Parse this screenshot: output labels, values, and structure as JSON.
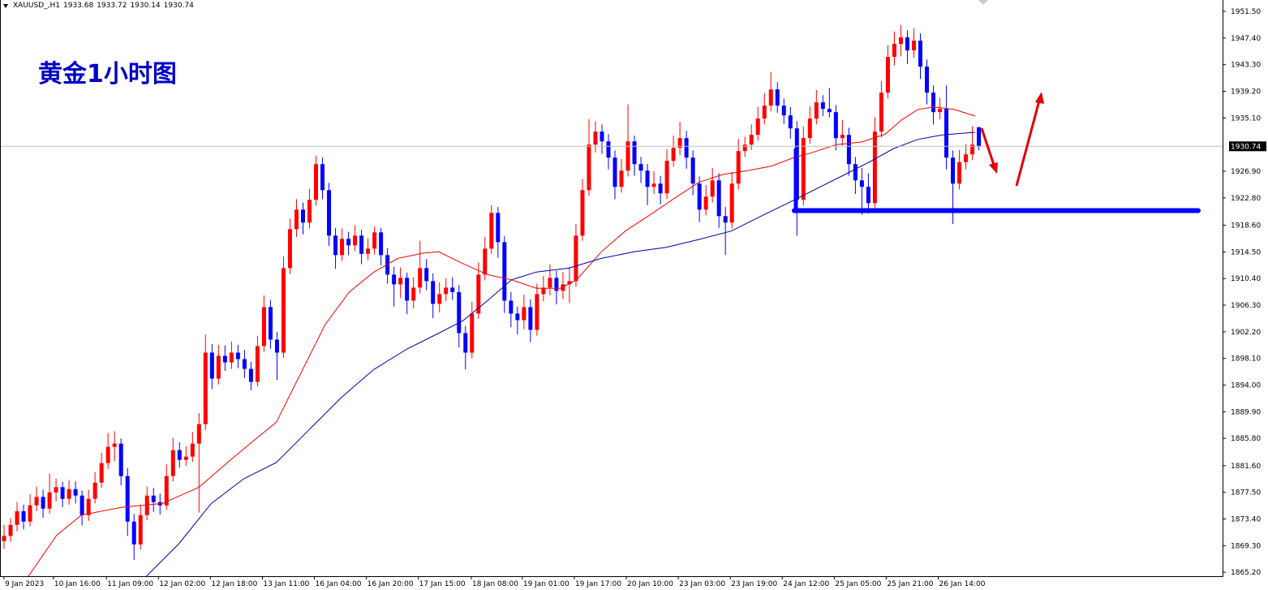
{
  "chart_data": {
    "type": "candlestick",
    "symbol": "XAUUSD_,H1",
    "header_values": [
      1933.68,
      1933.72,
      1930.14,
      1930.74
    ],
    "title": "黄金1小时图",
    "up_color": "#ff0000",
    "down_color": "#0000ff",
    "grid": false,
    "candles": [
      [
        1870,
        1872.5,
        1868.8,
        1870.8
      ],
      [
        1870.8,
        1873.5,
        1869.9,
        1872.5
      ],
      [
        1872.5,
        1876,
        1871.5,
        1874.6
      ],
      [
        1874.6,
        1875.6,
        1871.8,
        1873
      ],
      [
        1873,
        1877.2,
        1872.3,
        1875.5
      ],
      [
        1875.5,
        1878.4,
        1874.6,
        1876.8
      ],
      [
        1876.8,
        1877.9,
        1873.6,
        1875
      ],
      [
        1875,
        1880.4,
        1874.2,
        1877.5
      ],
      [
        1877.5,
        1879.6,
        1876.1,
        1878.3
      ],
      [
        1878.3,
        1879.1,
        1875.2,
        1876.5
      ],
      [
        1876.5,
        1879.4,
        1875.6,
        1878
      ],
      [
        1878,
        1879.2,
        1875.8,
        1877
      ],
      [
        1877,
        1877.8,
        1872.4,
        1874
      ],
      [
        1874,
        1877.9,
        1873.1,
        1876.5
      ],
      [
        1876.5,
        1880.6,
        1875.8,
        1879
      ],
      [
        1879,
        1883.6,
        1878.2,
        1882
      ],
      [
        1882,
        1886.6,
        1881.1,
        1884.5
      ],
      [
        1884.5,
        1886.9,
        1882.3,
        1885
      ],
      [
        1885,
        1885.8,
        1878.6,
        1880
      ],
      [
        1880,
        1881.2,
        1870.8,
        1873
      ],
      [
        1873,
        1874.2,
        1867.1,
        1869.5
      ],
      [
        1869.5,
        1875.6,
        1868.7,
        1874
      ],
      [
        1874,
        1878.4,
        1873.2,
        1877
      ],
      [
        1877,
        1878.2,
        1874.5,
        1876
      ],
      [
        1876,
        1877.3,
        1874.1,
        1875.5
      ],
      [
        1875.5,
        1881.8,
        1874.8,
        1880
      ],
      [
        1880,
        1885.9,
        1879.2,
        1884
      ],
      [
        1884,
        1885.2,
        1881.3,
        1882.5
      ],
      [
        1882.5,
        1884.6,
        1881.6,
        1883
      ],
      [
        1883,
        1886.8,
        1882.2,
        1885
      ],
      [
        1885,
        1889.7,
        1874.4,
        1888
      ],
      [
        1888,
        1901.8,
        1887.1,
        1899
      ],
      [
        1899,
        1900.3,
        1893.4,
        1895
      ],
      [
        1895,
        1900.2,
        1894.1,
        1898.5
      ],
      [
        1898.5,
        1900.1,
        1896.2,
        1897.5
      ],
      [
        1897.5,
        1900.7,
        1896.5,
        1899
      ],
      [
        1899,
        1900.2,
        1896.6,
        1898
      ],
      [
        1898,
        1899.4,
        1895.1,
        1896.5
      ],
      [
        1896.5,
        1897.6,
        1893.2,
        1894.5
      ],
      [
        1894.5,
        1901.6,
        1893.8,
        1900
      ],
      [
        1900,
        1907.8,
        1899.1,
        1906
      ],
      [
        1906,
        1907.1,
        1899.6,
        1901
      ],
      [
        1901,
        1902.2,
        1894.8,
        1899
      ],
      [
        1899,
        1913.8,
        1898.2,
        1912
      ],
      [
        1912,
        1919.6,
        1911.1,
        1918
      ],
      [
        1918,
        1922.6,
        1916.8,
        1921
      ],
      [
        1921,
        1922.1,
        1917.2,
        1919
      ],
      [
        1919,
        1924.2,
        1918.1,
        1922.5
      ],
      [
        1922.5,
        1929.3,
        1921.6,
        1928
      ],
      [
        1928,
        1929,
        1922.6,
        1924
      ],
      [
        1924,
        1925.1,
        1915.4,
        1917
      ],
      [
        1917,
        1918.2,
        1911.9,
        1914
      ],
      [
        1914,
        1918.1,
        1913.1,
        1916.5
      ],
      [
        1916.5,
        1917.6,
        1914,
        1915.5
      ],
      [
        1915.5,
        1918.6,
        1914.6,
        1917
      ],
      [
        1917,
        1917.9,
        1912.6,
        1914.2
      ],
      [
        1914.2,
        1916.6,
        1913.2,
        1915
      ],
      [
        1915,
        1918.4,
        1914.1,
        1917.5
      ],
      [
        1917.5,
        1918.2,
        1912.4,
        1914
      ],
      [
        1914,
        1915.1,
        1909.6,
        1911
      ],
      [
        1911,
        1912.2,
        1906.1,
        1909.5
      ],
      [
        1909.5,
        1912.1,
        1907.4,
        1910.5
      ],
      [
        1910.5,
        1911.3,
        1904.9,
        1907
      ],
      [
        1907,
        1910.6,
        1905.8,
        1909
      ],
      [
        1909,
        1916.2,
        1908.1,
        1912
      ],
      [
        1912,
        1913.4,
        1908.6,
        1910
      ],
      [
        1910,
        1911.2,
        1904.3,
        1906.5
      ],
      [
        1906.5,
        1909.8,
        1905.2,
        1908
      ],
      [
        1908,
        1910.4,
        1906.9,
        1909
      ],
      [
        1909,
        1910.6,
        1907.1,
        1908.3
      ],
      [
        1908.3,
        1909.4,
        1899.8,
        1902
      ],
      [
        1902,
        1903.1,
        1896.4,
        1899
      ],
      [
        1899,
        1906.8,
        1898.1,
        1905
      ],
      [
        1905,
        1912.9,
        1904.2,
        1911
      ],
      [
        1911,
        1916.8,
        1910.1,
        1915
      ],
      [
        1915,
        1921.7,
        1914.2,
        1920.5
      ],
      [
        1920.5,
        1921.4,
        1913.6,
        1916
      ],
      [
        1916,
        1916.9,
        1905.1,
        1907
      ],
      [
        1907,
        1908.3,
        1902.9,
        1905
      ],
      [
        1905,
        1906.1,
        1901.8,
        1904
      ],
      [
        1904,
        1907.9,
        1902.6,
        1906
      ],
      [
        1906,
        1907.2,
        1900.6,
        1902.5
      ],
      [
        1902.5,
        1909.6,
        1901.6,
        1908
      ],
      [
        1908,
        1910.8,
        1906.9,
        1909
      ],
      [
        1909,
        1912.6,
        1907.8,
        1910.5
      ],
      [
        1910.5,
        1911.6,
        1906.4,
        1908.5
      ],
      [
        1908.5,
        1911.4,
        1907.2,
        1909.5
      ],
      [
        1909.5,
        1912.2,
        1906.6,
        1910
      ],
      [
        1910,
        1918.8,
        1909.1,
        1917
      ],
      [
        1917,
        1925.7,
        1916.2,
        1924
      ],
      [
        1924,
        1934.9,
        1923.1,
        1931
      ],
      [
        1931,
        1934.6,
        1929.8,
        1933
      ],
      [
        1933,
        1934.1,
        1929.6,
        1931.5
      ],
      [
        1931.5,
        1932.6,
        1927.2,
        1929
      ],
      [
        1929,
        1930.1,
        1922.6,
        1924.5
      ],
      [
        1924.5,
        1928.8,
        1923.6,
        1927
      ],
      [
        1927,
        1937.2,
        1926.1,
        1931.5
      ],
      [
        1931.5,
        1932.4,
        1926.2,
        1928
      ],
      [
        1928,
        1929.1,
        1925.1,
        1927
      ],
      [
        1927,
        1928,
        1921.7,
        1924.5
      ],
      [
        1924.5,
        1926.9,
        1923.4,
        1925
      ],
      [
        1925,
        1926.2,
        1921.8,
        1923.5
      ],
      [
        1923.5,
        1930.3,
        1922.6,
        1928.5
      ],
      [
        1928.5,
        1932.4,
        1927.6,
        1930.5
      ],
      [
        1930.5,
        1934.5,
        1929.4,
        1932
      ],
      [
        1932,
        1933.1,
        1927.3,
        1929
      ],
      [
        1929,
        1930.1,
        1923.2,
        1925
      ],
      [
        1925,
        1926.1,
        1919.1,
        1921
      ],
      [
        1921,
        1924.8,
        1920.1,
        1923
      ],
      [
        1923,
        1927.4,
        1922.1,
        1925.5
      ],
      [
        1925.5,
        1926.6,
        1918.2,
        1920
      ],
      [
        1920,
        1921.4,
        1914,
        1919
      ],
      [
        1919,
        1926.8,
        1918.1,
        1925
      ],
      [
        1925,
        1931.9,
        1924.1,
        1930
      ],
      [
        1930,
        1932.2,
        1929.1,
        1931
      ],
      [
        1931,
        1934.1,
        1930.2,
        1932.5
      ],
      [
        1932.5,
        1936.8,
        1931.6,
        1935
      ],
      [
        1935,
        1938.9,
        1934.1,
        1937
      ],
      [
        1937,
        1942.2,
        1936.1,
        1939.5
      ],
      [
        1939.5,
        1940.6,
        1935.9,
        1937
      ],
      [
        1937,
        1938.1,
        1934.2,
        1935.5
      ],
      [
        1935.5,
        1936.8,
        1931.9,
        1933.5
      ],
      [
        1933.5,
        1934.6,
        1917,
        1922.5
      ],
      [
        1922.5,
        1933.8,
        1921.6,
        1932
      ],
      [
        1932,
        1936.9,
        1931.1,
        1935
      ],
      [
        1935,
        1939.4,
        1934.1,
        1937.5
      ],
      [
        1937.5,
        1938.6,
        1935.4,
        1936.5
      ],
      [
        1936.5,
        1939.7,
        1935.2,
        1936
      ],
      [
        1936,
        1937.1,
        1930.1,
        1932
      ],
      [
        1932,
        1934.8,
        1930.9,
        1932.5
      ],
      [
        1932.5,
        1933.6,
        1926.2,
        1928
      ],
      [
        1928,
        1929.1,
        1923.4,
        1925.5
      ],
      [
        1925.5,
        1927.4,
        1920.2,
        1924.5
      ],
      [
        1924.5,
        1926.6,
        1920.4,
        1922
      ],
      [
        1922,
        1935.2,
        1921.1,
        1933
      ],
      [
        1933,
        1940.8,
        1932.1,
        1939
      ],
      [
        1939,
        1946.3,
        1938.1,
        1944.5
      ],
      [
        1944.5,
        1948.4,
        1943.2,
        1946.5
      ],
      [
        1946.5,
        1949.4,
        1944.6,
        1947.5
      ],
      [
        1947.5,
        1948.6,
        1943.4,
        1945.5
      ],
      [
        1945.5,
        1948.9,
        1944.4,
        1947
      ],
      [
        1947,
        1948.1,
        1941.1,
        1943
      ],
      [
        1943,
        1944.1,
        1937.2,
        1939
      ],
      [
        1939,
        1940.1,
        1934.1,
        1936
      ],
      [
        1936,
        1938.2,
        1934.9,
        1936.5
      ],
      [
        1936.5,
        1940.1,
        1927.2,
        1929
      ],
      [
        1929,
        1930.1,
        1918.8,
        1925
      ],
      [
        1925,
        1930.2,
        1924.1,
        1928.3
      ],
      [
        1928.3,
        1931.1,
        1927.2,
        1929.5
      ],
      [
        1929.5,
        1933.8,
        1928.6,
        1931
      ],
      [
        1933.68,
        1933.72,
        1930.14,
        1930.74
      ]
    ],
    "overlays": [
      {
        "color": "#ff0000",
        "x": [
          3.75,
          8.1,
          11.9,
          18.1,
          24.4,
          30,
          34.4,
          38.1,
          41.9,
          44.4,
          46.9,
          49.4,
          53.1,
          56.9,
          60.6,
          64.4,
          66.9,
          70.6,
          74.4,
          78.1,
          81.9,
          85.6,
          88.1,
          91.9,
          95.6,
          99.4,
          103.1,
          106.9,
          110.6,
          114.4,
          118.1,
          121.25,
          124.4,
          128.1,
          131.9,
          135.6,
          138.1,
          140.6,
          143.1,
          146.25,
          149.4
        ],
        "values": [
          1864.6,
          1870.9,
          1874.0,
          1875.2,
          1875.8,
          1878.3,
          1882.1,
          1885.2,
          1888.3,
          1893.3,
          1898.3,
          1903.3,
          1908.3,
          1911.4,
          1913.5,
          1914.3,
          1914.5,
          1912.7,
          1911.0,
          1910.2,
          1908.9,
          1908.9,
          1910.2,
          1914.5,
          1917.7,
          1920.2,
          1922.7,
          1925.2,
          1926.4,
          1927.0,
          1927.7,
          1928.9,
          1929.8,
          1931.0,
          1931.4,
          1932.6,
          1934.8,
          1936.4,
          1936.8,
          1936.4,
          1935.4
        ]
      },
      {
        "color": "#0000a0",
        "x": [
          21.9,
          26.9,
          31.9,
          36.9,
          41.9,
          46.9,
          51.9,
          56.9,
          61.9,
          66.9,
          70.6,
          74.4,
          78.1,
          81.9,
          86.9,
          91.9,
          96.9,
          101.9,
          106.9,
          111.9,
          116.9,
          120.6,
          124.4,
          129.4,
          133.1,
          136.9,
          140.6,
          144.4,
          149.4
        ],
        "values": [
          1864.6,
          1869.6,
          1875.8,
          1879.6,
          1882.1,
          1887.1,
          1892.1,
          1896.4,
          1899.5,
          1902.0,
          1903.9,
          1907.0,
          1910.2,
          1911.4,
          1912.0,
          1913.5,
          1914.5,
          1915.2,
          1916.4,
          1917.7,
          1920.2,
          1922.0,
          1923.9,
          1926.4,
          1928.3,
          1930.4,
          1931.8,
          1932.5,
          1932.9
        ]
      }
    ],
    "xlim": [
      -0.625,
      187.5
    ],
    "xticks": [
      {
        "value": 0,
        "label": "9 Jan 2023"
      },
      {
        "value": 7.6,
        "label": "10 Jan 16:00"
      },
      {
        "value": 15.75,
        "label": "11 Jan 09:00"
      },
      {
        "value": 23.75,
        "label": "12 Jan 02:00"
      },
      {
        "value": 31.75,
        "label": "12 Jan 18:00"
      },
      {
        "value": 39.75,
        "label": "13 Jan 11:00"
      },
      {
        "value": 47.75,
        "label": "16 Jan 04:00"
      },
      {
        "value": 55.75,
        "label": "16 Jan 20:00"
      },
      {
        "value": 63.75,
        "label": "17 Jan 15:00"
      },
      {
        "value": 71.9,
        "label": "18 Jan 08:00"
      },
      {
        "value": 79.75,
        "label": "19 Jan 01:00"
      },
      {
        "value": 87.75,
        "label": "19 Jan 17:00"
      },
      {
        "value": 95.75,
        "label": "20 Jan 10:00"
      },
      {
        "value": 103.75,
        "label": "23 Jan 03:00"
      },
      {
        "value": 111.75,
        "label": "23 Jan 19:00"
      },
      {
        "value": 119.75,
        "label": "24 Jan 12:00"
      },
      {
        "value": 127.75,
        "label": "25 Jan 05:00"
      },
      {
        "value": 135.75,
        "label": "25 Jan 21:00"
      },
      {
        "value": 143.75,
        "label": "26 Jan 14:00"
      }
    ],
    "ylim": [
      1864.6,
      1953.25
    ],
    "yticks": [
      {
        "value": 1951.5,
        "label": "1951.50"
      },
      {
        "value": 1947.4,
        "label": "1947.40"
      },
      {
        "value": 1943.3,
        "label": "1943.30"
      },
      {
        "value": 1939.2,
        "label": "1939.20"
      },
      {
        "value": 1935.1,
        "label": "1935.10"
      },
      {
        "value": 1926.9,
        "label": "1926.90"
      },
      {
        "value": 1922.8,
        "label": "1922.80"
      },
      {
        "value": 1918.6,
        "label": "1918.60"
      },
      {
        "value": 1914.5,
        "label": "1914.50"
      },
      {
        "value": 1910.4,
        "label": "1910.40"
      },
      {
        "value": 1906.3,
        "label": "1906.30"
      },
      {
        "value": 1902.2,
        "label": "1902.20"
      },
      {
        "value": 1898.1,
        "label": "1898.10"
      },
      {
        "value": 1894,
        "label": "1894.00"
      },
      {
        "value": 1889.9,
        "label": "1889.90"
      },
      {
        "value": 1885.8,
        "label": "1885.80"
      },
      {
        "value": 1881.6,
        "label": "1881.60"
      },
      {
        "value": 1877.5,
        "label": "1877.50"
      },
      {
        "value": 1873.4,
        "label": "1873.40"
      },
      {
        "value": 1869.3,
        "label": "1869.30"
      },
      {
        "value": 1865.2,
        "label": "1865.20"
      }
    ],
    "last_price": 1930.74
  }
}
